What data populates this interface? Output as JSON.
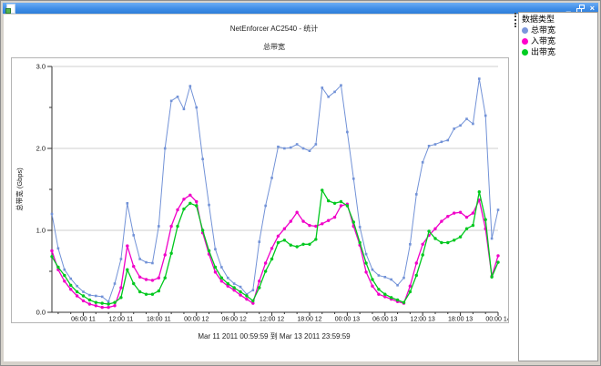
{
  "window": {
    "title": "",
    "minimize_label": "_",
    "close_label": "×"
  },
  "chart": {
    "title": "NetEnforcer AC2540 - 统计",
    "subtitle": "总带宽",
    "y_axis_label": "总带宽 (Gbps)",
    "date_range": "Mar 11 2011  00:59:59 到 Mar 13 2011  23:59:59"
  },
  "legend": {
    "header": "数据类型",
    "items": [
      {
        "label": "总带宽",
        "color": "#7b96dc"
      },
      {
        "label": "入带宽",
        "color": "#ff00cc"
      },
      {
        "label": "出带宽",
        "color": "#00cc22"
      }
    ]
  },
  "chart_data": {
    "type": "line",
    "title": "NetEnforcer AC2540 - 统计",
    "subtitle": "总带宽",
    "ylabel": "总带宽 (Gbps)",
    "ylim": [
      0,
      3
    ],
    "y_major_ticks": [
      0.0,
      1.0,
      2.0,
      3.0
    ],
    "y_minor_ticks": [
      0.5,
      1.5,
      2.5
    ],
    "grid": "horizontal-only",
    "legend_position": "right-panel",
    "x_description": "hourly samples from Mar 11 2011 01:00 to Mar 14 2011 00:00",
    "x_tick_labels": [
      "06:00 11",
      "12:00 11",
      "18:00 11",
      "00:00 12",
      "06:00 12",
      "12:00 12",
      "18:00 12",
      "00:00 13",
      "06:00 13",
      "12:00 13",
      "18:00 13",
      "00:00 14"
    ],
    "x_tick_indices": [
      5,
      11,
      17,
      23,
      29,
      35,
      41,
      47,
      53,
      59,
      65,
      71
    ],
    "series": [
      {
        "name": "总带宽",
        "color": "#7292d7",
        "marker": "square",
        "values": [
          1.2,
          0.78,
          0.52,
          0.41,
          0.32,
          0.25,
          0.21,
          0.2,
          0.19,
          0.13,
          0.35,
          0.65,
          1.33,
          0.94,
          0.65,
          0.61,
          0.6,
          1.05,
          2.0,
          2.58,
          2.63,
          2.48,
          2.76,
          2.5,
          1.87,
          1.31,
          0.77,
          0.55,
          0.42,
          0.35,
          0.31,
          0.22,
          0.27,
          0.86,
          1.3,
          1.64,
          2.02,
          2.0,
          2.01,
          2.05,
          2.0,
          1.97,
          2.05,
          2.74,
          2.63,
          2.69,
          2.77,
          2.2,
          1.63,
          1.04,
          0.71,
          0.52,
          0.45,
          0.43,
          0.4,
          0.33,
          0.42,
          0.83,
          1.44,
          1.83,
          2.03,
          2.05,
          2.08,
          2.1,
          2.24,
          2.28,
          2.36,
          2.3,
          2.85,
          2.4,
          0.9,
          1.25
        ]
      },
      {
        "name": "入带宽",
        "color": "#f000c8",
        "marker": "circle",
        "values": [
          0.75,
          0.52,
          0.38,
          0.28,
          0.2,
          0.14,
          0.1,
          0.08,
          0.06,
          0.06,
          0.08,
          0.3,
          0.81,
          0.56,
          0.43,
          0.4,
          0.39,
          0.42,
          0.7,
          1.05,
          1.25,
          1.38,
          1.43,
          1.35,
          0.97,
          0.71,
          0.49,
          0.38,
          0.32,
          0.27,
          0.21,
          0.16,
          0.11,
          0.38,
          0.6,
          0.78,
          0.93,
          1.02,
          1.11,
          1.22,
          1.11,
          1.06,
          1.05,
          1.08,
          1.12,
          1.16,
          1.3,
          1.32,
          1.05,
          0.82,
          0.49,
          0.32,
          0.22,
          0.19,
          0.16,
          0.13,
          0.11,
          0.32,
          0.6,
          0.83,
          0.94,
          1.02,
          1.11,
          1.17,
          1.21,
          1.22,
          1.16,
          1.21,
          1.37,
          1.02,
          0.44,
          0.69
        ]
      },
      {
        "name": "出带宽",
        "color": "#00c81e",
        "marker": "circle",
        "values": [
          0.68,
          0.55,
          0.45,
          0.33,
          0.25,
          0.2,
          0.15,
          0.12,
          0.11,
          0.1,
          0.12,
          0.18,
          0.52,
          0.35,
          0.25,
          0.22,
          0.22,
          0.26,
          0.42,
          0.72,
          1.05,
          1.26,
          1.33,
          1.3,
          1.0,
          0.75,
          0.55,
          0.42,
          0.35,
          0.3,
          0.25,
          0.2,
          0.14,
          0.3,
          0.5,
          0.65,
          0.85,
          0.88,
          0.82,
          0.8,
          0.83,
          0.83,
          0.89,
          1.49,
          1.36,
          1.33,
          1.35,
          1.3,
          1.1,
          0.85,
          0.6,
          0.4,
          0.28,
          0.22,
          0.18,
          0.15,
          0.12,
          0.25,
          0.45,
          0.7,
          0.99,
          0.9,
          0.85,
          0.85,
          0.88,
          0.92,
          1.02,
          1.06,
          1.47,
          1.13,
          0.43,
          0.61
        ]
      }
    ]
  }
}
